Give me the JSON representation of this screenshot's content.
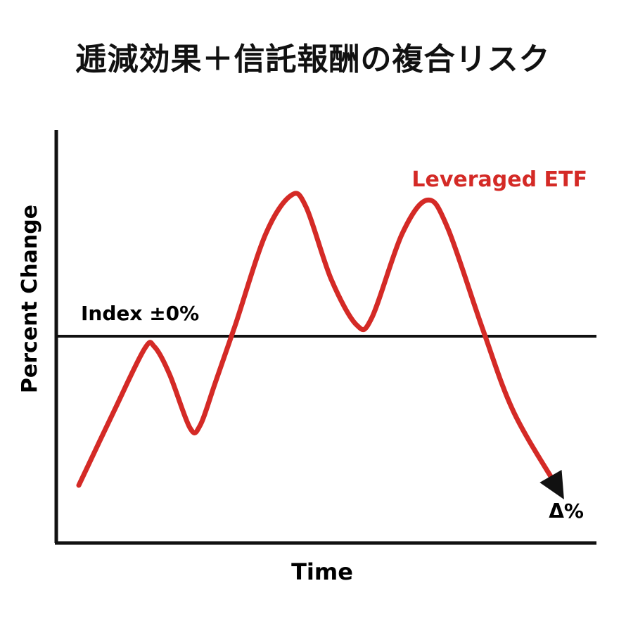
{
  "title": "逓減効果＋信託報酬の複合リスク",
  "colors": {
    "series": "#d42a26",
    "axis": "#111111",
    "text": "#111111"
  },
  "chart_data": {
    "type": "line",
    "title": "逓減効果＋信託報酬の複合リスク",
    "xlabel": "Time",
    "ylabel": "Percent Change",
    "grid": false,
    "legend": "none",
    "ylim": [
      -1.0,
      1.0
    ],
    "xlim": [
      0,
      1.0
    ],
    "baseline": {
      "label": "Index ±0%",
      "value": 0
    },
    "series": [
      {
        "name": "Leveraged ETF",
        "color": "#d42a26",
        "points": [
          [
            0.0,
            -0.7
          ],
          [
            0.07,
            -0.35
          ],
          [
            0.13,
            -0.06
          ],
          [
            0.15,
            -0.05
          ],
          [
            0.18,
            -0.18
          ],
          [
            0.22,
            -0.43
          ],
          [
            0.24,
            -0.42
          ],
          [
            0.27,
            -0.22
          ],
          [
            0.31,
            0.05
          ],
          [
            0.37,
            0.45
          ],
          [
            0.42,
            0.62
          ],
          [
            0.45,
            0.57
          ],
          [
            0.5,
            0.25
          ],
          [
            0.55,
            0.05
          ],
          [
            0.58,
            0.08
          ],
          [
            0.64,
            0.45
          ],
          [
            0.69,
            0.6
          ],
          [
            0.73,
            0.48
          ],
          [
            0.8,
            0.03
          ],
          [
            0.86,
            -0.35
          ],
          [
            0.94,
            -0.68
          ]
        ],
        "end_label": "Δ%"
      }
    ]
  }
}
